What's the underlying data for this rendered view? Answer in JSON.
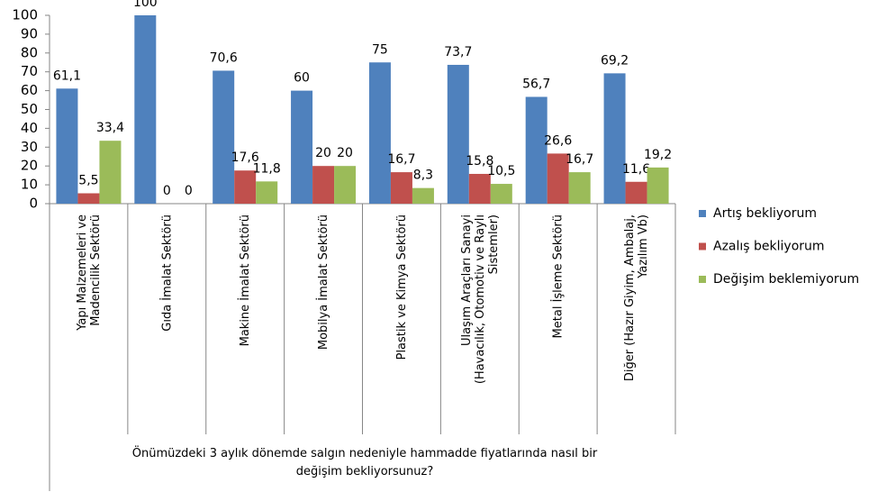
{
  "chart_data": {
    "type": "bar",
    "categories": [
      "Yapı Malzemeleri ve\nMadencilik Sektörü",
      "Gıda İmalat Sektörü",
      "Makine İmalat Sektörü",
      "Mobilya İmalat Sektörü",
      "Plastik ve Kimya Sektörü",
      "Ulaşım Araçları Sanayi\n(Havacılık, Otomotiv ve Raylı\nSistemler)",
      "Metal İşleme Sektörü",
      "Diğer (Hazır Giyim, Ambalaj,\nYazılım Vb)"
    ],
    "x_label": "Önümüzdeki 3 aylık dönemde salgın nedeniyle hammadde fiyatlarında nasıl bir\ndeğişim bekliyorsunuz?",
    "series": [
      {
        "name": "Artış bekliyorum",
        "color": "#4f81bd",
        "values": [
          61.1,
          100,
          70.6,
          60,
          75,
          73.7,
          56.7,
          69.2
        ],
        "value_labels": [
          "61,1",
          "100",
          "70,6",
          "60",
          "75",
          "73,7",
          "56,7",
          "69,2"
        ]
      },
      {
        "name": "Azalış bekliyorum",
        "color": "#c0504d",
        "values": [
          5.5,
          0,
          17.6,
          20,
          16.7,
          15.8,
          26.6,
          11.6
        ],
        "value_labels": [
          "5,5",
          "0",
          "17,6",
          "20",
          "16,7",
          "15,8",
          "26,6",
          "11,6"
        ]
      },
      {
        "name": "Değişim beklemiyorum",
        "color": "#9bbb59",
        "values": [
          33.4,
          0,
          11.8,
          20,
          8.3,
          10.5,
          16.7,
          19.2
        ],
        "value_labels": [
          "33,4",
          "0",
          "11,8",
          "20",
          "8,3",
          "10,5",
          "16,7",
          "19,2"
        ]
      }
    ],
    "ylim": [
      0,
      100
    ],
    "yticks": [
      0,
      10,
      20,
      30,
      40,
      50,
      60,
      70,
      80,
      90,
      100
    ],
    "legend": "right"
  }
}
